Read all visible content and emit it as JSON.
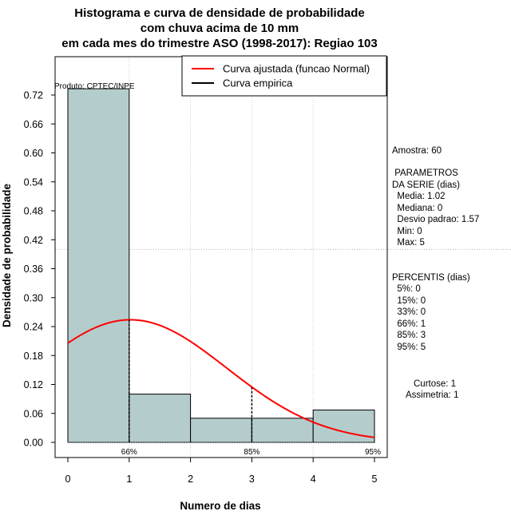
{
  "chart_data": {
    "type": "bar",
    "title_lines": [
      "Histograma e curva de densidade de probabilidade",
      "com chuva acima de 10 mm",
      "em cada mes do trimestre ASO (1998-2017): Regiao 103"
    ],
    "xlabel": "Numero de dias",
    "ylabel": "Densidade de probabilidade",
    "xlim": [
      0,
      5
    ],
    "ylim": [
      0,
      0.72
    ],
    "x_ticks": [
      0,
      1,
      2,
      3,
      4,
      5
    ],
    "y_ticks": [
      0.0,
      0.06,
      0.12,
      0.18,
      0.24,
      0.3,
      0.36,
      0.42,
      0.48,
      0.54,
      0.6,
      0.66,
      0.72
    ],
    "y_tick_labels": [
      "0.00",
      "0.06",
      "0.12",
      "0.18",
      "0.24",
      "0.30",
      "0.36",
      "0.42",
      "0.48",
      "0.54",
      "0.60",
      "0.66",
      "0.72"
    ],
    "x_tick_labels": [
      "0",
      "1",
      "2",
      "3",
      "4",
      "5"
    ],
    "bins": [
      {
        "start": 0,
        "end": 1,
        "density": 0.733
      },
      {
        "start": 1,
        "end": 2,
        "density": 0.1
      },
      {
        "start": 2,
        "end": 3,
        "density": 0.05
      },
      {
        "start": 3,
        "end": 4,
        "density": 0.05
      },
      {
        "start": 4,
        "end": 5,
        "density": 0.067
      }
    ],
    "horizontal_reference": 0.4,
    "normal_curve": {
      "mean": 1.02,
      "sd": 1.57,
      "color": "#ff0000"
    },
    "percentile_markers": [
      {
        "x": 1,
        "label": "66%"
      },
      {
        "x": 3,
        "label": "85%"
      },
      {
        "x": 5,
        "label": "95%"
      }
    ],
    "legend": [
      {
        "label": "Curva ajustada (funcao Normal)",
        "color": "#ff0000"
      },
      {
        "label": "Curva empirica",
        "color": "#000000"
      }
    ],
    "legend_position": "top-right",
    "bar_color": "#b4cccc",
    "grid": true,
    "product_label": "Produto: CPTEC/INPE"
  },
  "side_panel": {
    "amostra": "Amostra: 60",
    "param_header_1": " PARAMETROS",
    "param_header_2": "DA SERIE (dias)",
    "params": [
      "  Media: 1.02",
      "  Mediana: 0",
      "  Desvio padrao: 1.57",
      "  Min: 0",
      "  Max: 5"
    ],
    "percentis_header": "PERCENTIS (dias)",
    "percentis": [
      "  5%: 0",
      "  15%: 0",
      "  33%: 0",
      "  66%: 1",
      "  85%: 3",
      "  95%: 5"
    ],
    "curtose": "Curtose: 1",
    "assimetria": "Assimetria: 1"
  }
}
